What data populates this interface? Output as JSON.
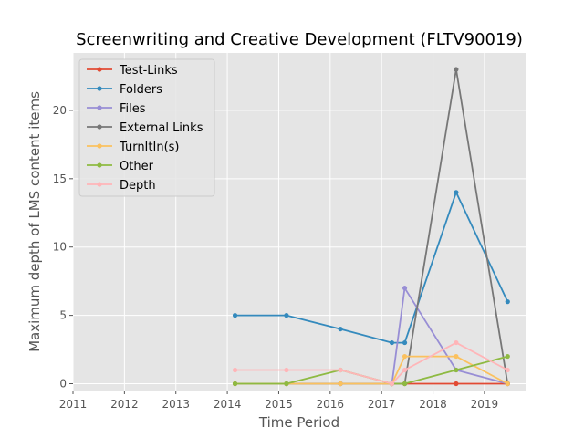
{
  "chart_data": {
    "type": "line",
    "title": "Screenwriting and Creative Development (FLTV90019)",
    "xlabel": "Time Period",
    "ylabel": "Maximum depth of LMS content items",
    "xlim": [
      2011.0,
      2019.8
    ],
    "ylim": [
      -0.5,
      24.2
    ],
    "x_ticks": [
      2011,
      2012,
      2013,
      2014,
      2015,
      2016,
      2017,
      2018,
      2019
    ],
    "y_ticks": [
      0,
      5,
      10,
      15,
      20
    ],
    "grid": true,
    "legend_position": "upper-left",
    "series": [
      {
        "name": "Test-Links",
        "color": "#E24A33",
        "points": [
          [
            2014.15,
            0
          ],
          [
            2015.15,
            0
          ],
          [
            2016.2,
            0
          ],
          [
            2017.2,
            0
          ],
          [
            2017.45,
            0
          ],
          [
            2018.45,
            0
          ],
          [
            2019.45,
            0
          ]
        ]
      },
      {
        "name": "Folders",
        "color": "#348ABD",
        "points": [
          [
            2014.15,
            5
          ],
          [
            2015.15,
            5
          ],
          [
            2016.2,
            4
          ],
          [
            2017.2,
            3
          ],
          [
            2017.45,
            3
          ],
          [
            2018.45,
            14
          ],
          [
            2019.45,
            6
          ]
        ]
      },
      {
        "name": "Files",
        "color": "#988ED5",
        "points": [
          [
            2014.15,
            0
          ],
          [
            2015.15,
            0
          ],
          [
            2016.2,
            0
          ],
          [
            2017.2,
            0
          ],
          [
            2017.45,
            7
          ],
          [
            2018.45,
            1
          ],
          [
            2019.45,
            0
          ]
        ]
      },
      {
        "name": "External Links",
        "color": "#777777",
        "points": [
          [
            2014.15,
            0
          ],
          [
            2015.15,
            0
          ],
          [
            2016.2,
            0
          ],
          [
            2017.2,
            0
          ],
          [
            2017.45,
            0
          ],
          [
            2018.45,
            23
          ],
          [
            2019.45,
            0
          ]
        ]
      },
      {
        "name": "TurnItIn(s)",
        "color": "#FBC15E",
        "points": [
          [
            2014.15,
            0
          ],
          [
            2015.15,
            0
          ],
          [
            2016.2,
            0
          ],
          [
            2017.2,
            0
          ],
          [
            2017.45,
            2
          ],
          [
            2018.45,
            2
          ],
          [
            2019.45,
            0
          ]
        ]
      },
      {
        "name": "Other",
        "color": "#8EBA42",
        "points": [
          [
            2014.15,
            0
          ],
          [
            2015.15,
            0
          ],
          [
            2016.2,
            1
          ],
          [
            2017.2,
            0
          ],
          [
            2017.45,
            0
          ],
          [
            2018.45,
            1
          ],
          [
            2019.45,
            2
          ]
        ]
      },
      {
        "name": "Depth",
        "color": "#FFB5B8",
        "points": [
          [
            2014.15,
            1
          ],
          [
            2015.15,
            1
          ],
          [
            2016.2,
            1
          ],
          [
            2017.2,
            0
          ],
          [
            2017.45,
            1
          ],
          [
            2018.45,
            3
          ],
          [
            2019.45,
            1
          ]
        ]
      }
    ]
  }
}
